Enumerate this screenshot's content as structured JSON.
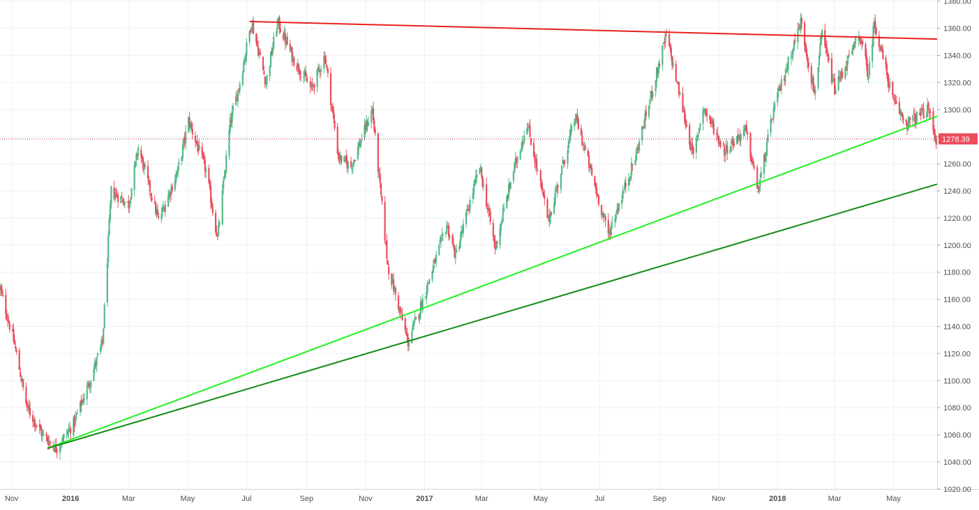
{
  "chart_data": {
    "type": "candlestick",
    "title": "",
    "xlabel": "",
    "ylabel": "",
    "ylim": [
      1020,
      1380
    ],
    "y_ticks": [
      "1020.00",
      "1040.00",
      "1060.00",
      "1080.00",
      "1100.00",
      "1120.00",
      "1140.00",
      "1160.00",
      "1180.00",
      "1200.00",
      "1220.00",
      "1240.00",
      "1260.00",
      "1280.00",
      "1300.00",
      "1320.00",
      "1340.00",
      "1360.00",
      "1380.00"
    ],
    "x_ticks": [
      {
        "label": "Nov",
        "date": "2015-11-01"
      },
      {
        "label": "2016",
        "date": "2016-01-01"
      },
      {
        "label": "Mar",
        "date": "2016-03-01"
      },
      {
        "label": "May",
        "date": "2016-05-01"
      },
      {
        "label": "Jul",
        "date": "2016-07-01"
      },
      {
        "label": "Sep",
        "date": "2016-09-01"
      },
      {
        "label": "Nov",
        "date": "2016-11-01"
      },
      {
        "label": "2017",
        "date": "2017-01-01"
      },
      {
        "label": "Mar",
        "date": "2017-03-01"
      },
      {
        "label": "May",
        "date": "2017-05-01"
      },
      {
        "label": "Jul",
        "date": "2017-07-01"
      },
      {
        "label": "Sep",
        "date": "2017-09-01"
      },
      {
        "label": "Nov",
        "date": "2017-11-01"
      },
      {
        "label": "2018",
        "date": "2018-01-01"
      },
      {
        "label": "Mar",
        "date": "2018-03-01"
      },
      {
        "label": "May",
        "date": "2018-05-01"
      }
    ],
    "x_range": [
      "2015-10-20",
      "2018-06-15"
    ],
    "price_path": [
      [
        "2015-10-20",
        1168
      ],
      [
        "2015-11-03",
        1130
      ],
      [
        "2015-11-17",
        1080
      ],
      [
        "2015-12-03",
        1060
      ],
      [
        "2015-12-17",
        1050
      ],
      [
        "2016-01-04",
        1068
      ],
      [
        "2016-01-20",
        1098
      ],
      [
        "2016-02-03",
        1128
      ],
      [
        "2016-02-12",
        1240
      ],
      [
        "2016-03-01",
        1230
      ],
      [
        "2016-03-11",
        1272
      ],
      [
        "2016-04-01",
        1218
      ],
      [
        "2016-04-21",
        1255
      ],
      [
        "2016-05-02",
        1292
      ],
      [
        "2016-05-20",
        1255
      ],
      [
        "2016-06-01",
        1205
      ],
      [
        "2016-06-14",
        1290
      ],
      [
        "2016-06-24",
        1320
      ],
      [
        "2016-07-06",
        1365
      ],
      [
        "2016-07-21",
        1320
      ],
      [
        "2016-08-02",
        1365
      ],
      [
        "2016-08-18",
        1338
      ],
      [
        "2016-09-06",
        1315
      ],
      [
        "2016-09-20",
        1340
      ],
      [
        "2016-10-04",
        1265
      ],
      [
        "2016-10-17",
        1258
      ],
      [
        "2016-11-08",
        1300
      ],
      [
        "2016-11-24",
        1185
      ],
      [
        "2016-12-15",
        1128
      ],
      [
        "2016-12-28",
        1155
      ],
      [
        "2017-01-24",
        1215
      ],
      [
        "2017-02-02",
        1192
      ],
      [
        "2017-02-27",
        1258
      ],
      [
        "2017-03-15",
        1198
      ],
      [
        "2017-04-01",
        1250
      ],
      [
        "2017-04-17",
        1290
      ],
      [
        "2017-05-09",
        1218
      ],
      [
        "2017-06-06",
        1295
      ],
      [
        "2017-07-10",
        1208
      ],
      [
        "2017-08-07",
        1265
      ],
      [
        "2017-09-08",
        1355
      ],
      [
        "2017-10-06",
        1265
      ],
      [
        "2017-10-16",
        1302
      ],
      [
        "2017-11-07",
        1270
      ],
      [
        "2017-11-29",
        1285
      ],
      [
        "2017-12-12",
        1240
      ],
      [
        "2017-12-28",
        1300
      ],
      [
        "2018-01-25",
        1365
      ],
      [
        "2018-02-08",
        1312
      ],
      [
        "2018-02-16",
        1355
      ],
      [
        "2018-03-01",
        1315
      ],
      [
        "2018-03-27",
        1355
      ],
      [
        "2018-04-05",
        1325
      ],
      [
        "2018-04-11",
        1365
      ],
      [
        "2018-05-01",
        1305
      ],
      [
        "2018-05-15",
        1290
      ],
      [
        "2018-06-06",
        1300
      ],
      [
        "2018-06-14",
        1278
      ]
    ],
    "trend_lines": [
      {
        "color": "#e8201e",
        "from": [
          "2016-07-04",
          1365
        ],
        "to": [
          "2018-06-15",
          1352
        ]
      },
      {
        "color": "#1ef01e",
        "from": [
          "2015-12-08",
          1050
        ],
        "to": [
          "2018-06-15",
          1295
        ]
      },
      {
        "color": "#138a13",
        "from": [
          "2015-12-08",
          1050
        ],
        "to": [
          "2018-06-15",
          1245
        ]
      }
    ],
    "last_price": {
      "value": 1278.39,
      "label": "1278.39"
    },
    "grid": true,
    "colors": {
      "up": "#53b987",
      "down": "#eb4d5c",
      "price_line": "#b4306d",
      "price_badge": "#eb4d5c"
    }
  }
}
